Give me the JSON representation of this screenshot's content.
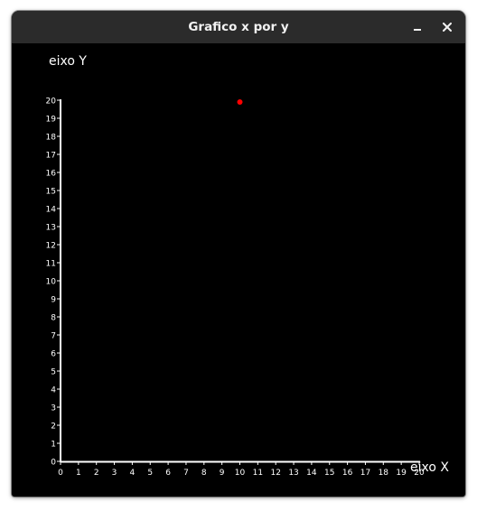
{
  "window": {
    "title": "Grafico x por y",
    "minimize_icon": "minimize-icon",
    "close_icon": "close-icon"
  },
  "colors": {
    "background": "#000000",
    "titlebar": "#2b2b2b",
    "axis": "#ffffff",
    "point": "#ff0000"
  },
  "chart_data": {
    "type": "scatter",
    "title": "",
    "xlabel": "eixo X",
    "ylabel": "eixo Y",
    "xlim": [
      0,
      20
    ],
    "ylim": [
      0,
      20
    ],
    "x_ticks": [
      0,
      1,
      2,
      3,
      4,
      5,
      6,
      7,
      8,
      9,
      10,
      11,
      12,
      13,
      14,
      15,
      16,
      17,
      18,
      19,
      20
    ],
    "y_ticks": [
      0,
      1,
      2,
      3,
      4,
      5,
      6,
      7,
      8,
      9,
      10,
      11,
      12,
      13,
      14,
      15,
      16,
      17,
      18,
      19,
      20
    ],
    "grid": false,
    "series": [
      {
        "x": [
          10
        ],
        "y": [
          19.9
        ],
        "color": "#ff0000"
      }
    ]
  }
}
